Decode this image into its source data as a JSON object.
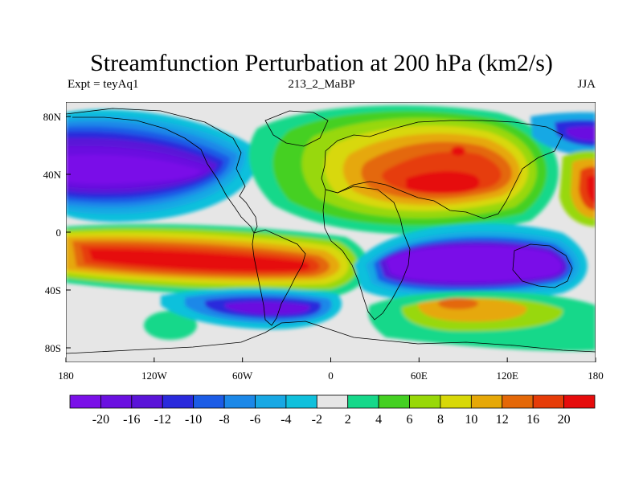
{
  "title": "Streamfunction Perturbation at 200 hPa (km2/s)",
  "subtitle_left": "Expt = teyAq1",
  "subtitle_center": "213_2_MaBP",
  "subtitle_right": "JJA",
  "map": {
    "lon_range": [
      -180,
      180
    ],
    "lat_range": [
      -90,
      90
    ],
    "x_ticks": [
      {
        "lon": -180,
        "label": "180"
      },
      {
        "lon": -120,
        "label": "120W"
      },
      {
        "lon": -60,
        "label": "60W"
      },
      {
        "lon": 0,
        "label": "0"
      },
      {
        "lon": 60,
        "label": "60E"
      },
      {
        "lon": 120,
        "label": "120E"
      },
      {
        "lon": 180,
        "label": "180"
      }
    ],
    "y_ticks": [
      {
        "lat": 80,
        "label": "80N"
      },
      {
        "lat": 40,
        "label": "40N"
      },
      {
        "lat": 0,
        "label": "0"
      },
      {
        "lat": -40,
        "label": "40S"
      },
      {
        "lat": -80,
        "label": "80S"
      }
    ]
  },
  "colorbar": {
    "labels": [
      "-20",
      "-16",
      "-12",
      "-10",
      "-8",
      "-6",
      "-4",
      "-2",
      "2",
      "4",
      "6",
      "8",
      "10",
      "12",
      "16",
      "20"
    ],
    "colors": [
      "#7a10e8",
      "#6a10e0",
      "#5a14d8",
      "#2a2adc",
      "#1c5ce6",
      "#1c88e8",
      "#18a8e4",
      "#10c0dc",
      "#e6e6e6",
      "#16d88a",
      "#44d022",
      "#98d808",
      "#d8d808",
      "#e6a808",
      "#e46808",
      "#e63c08",
      "#e60c0c"
    ]
  }
}
